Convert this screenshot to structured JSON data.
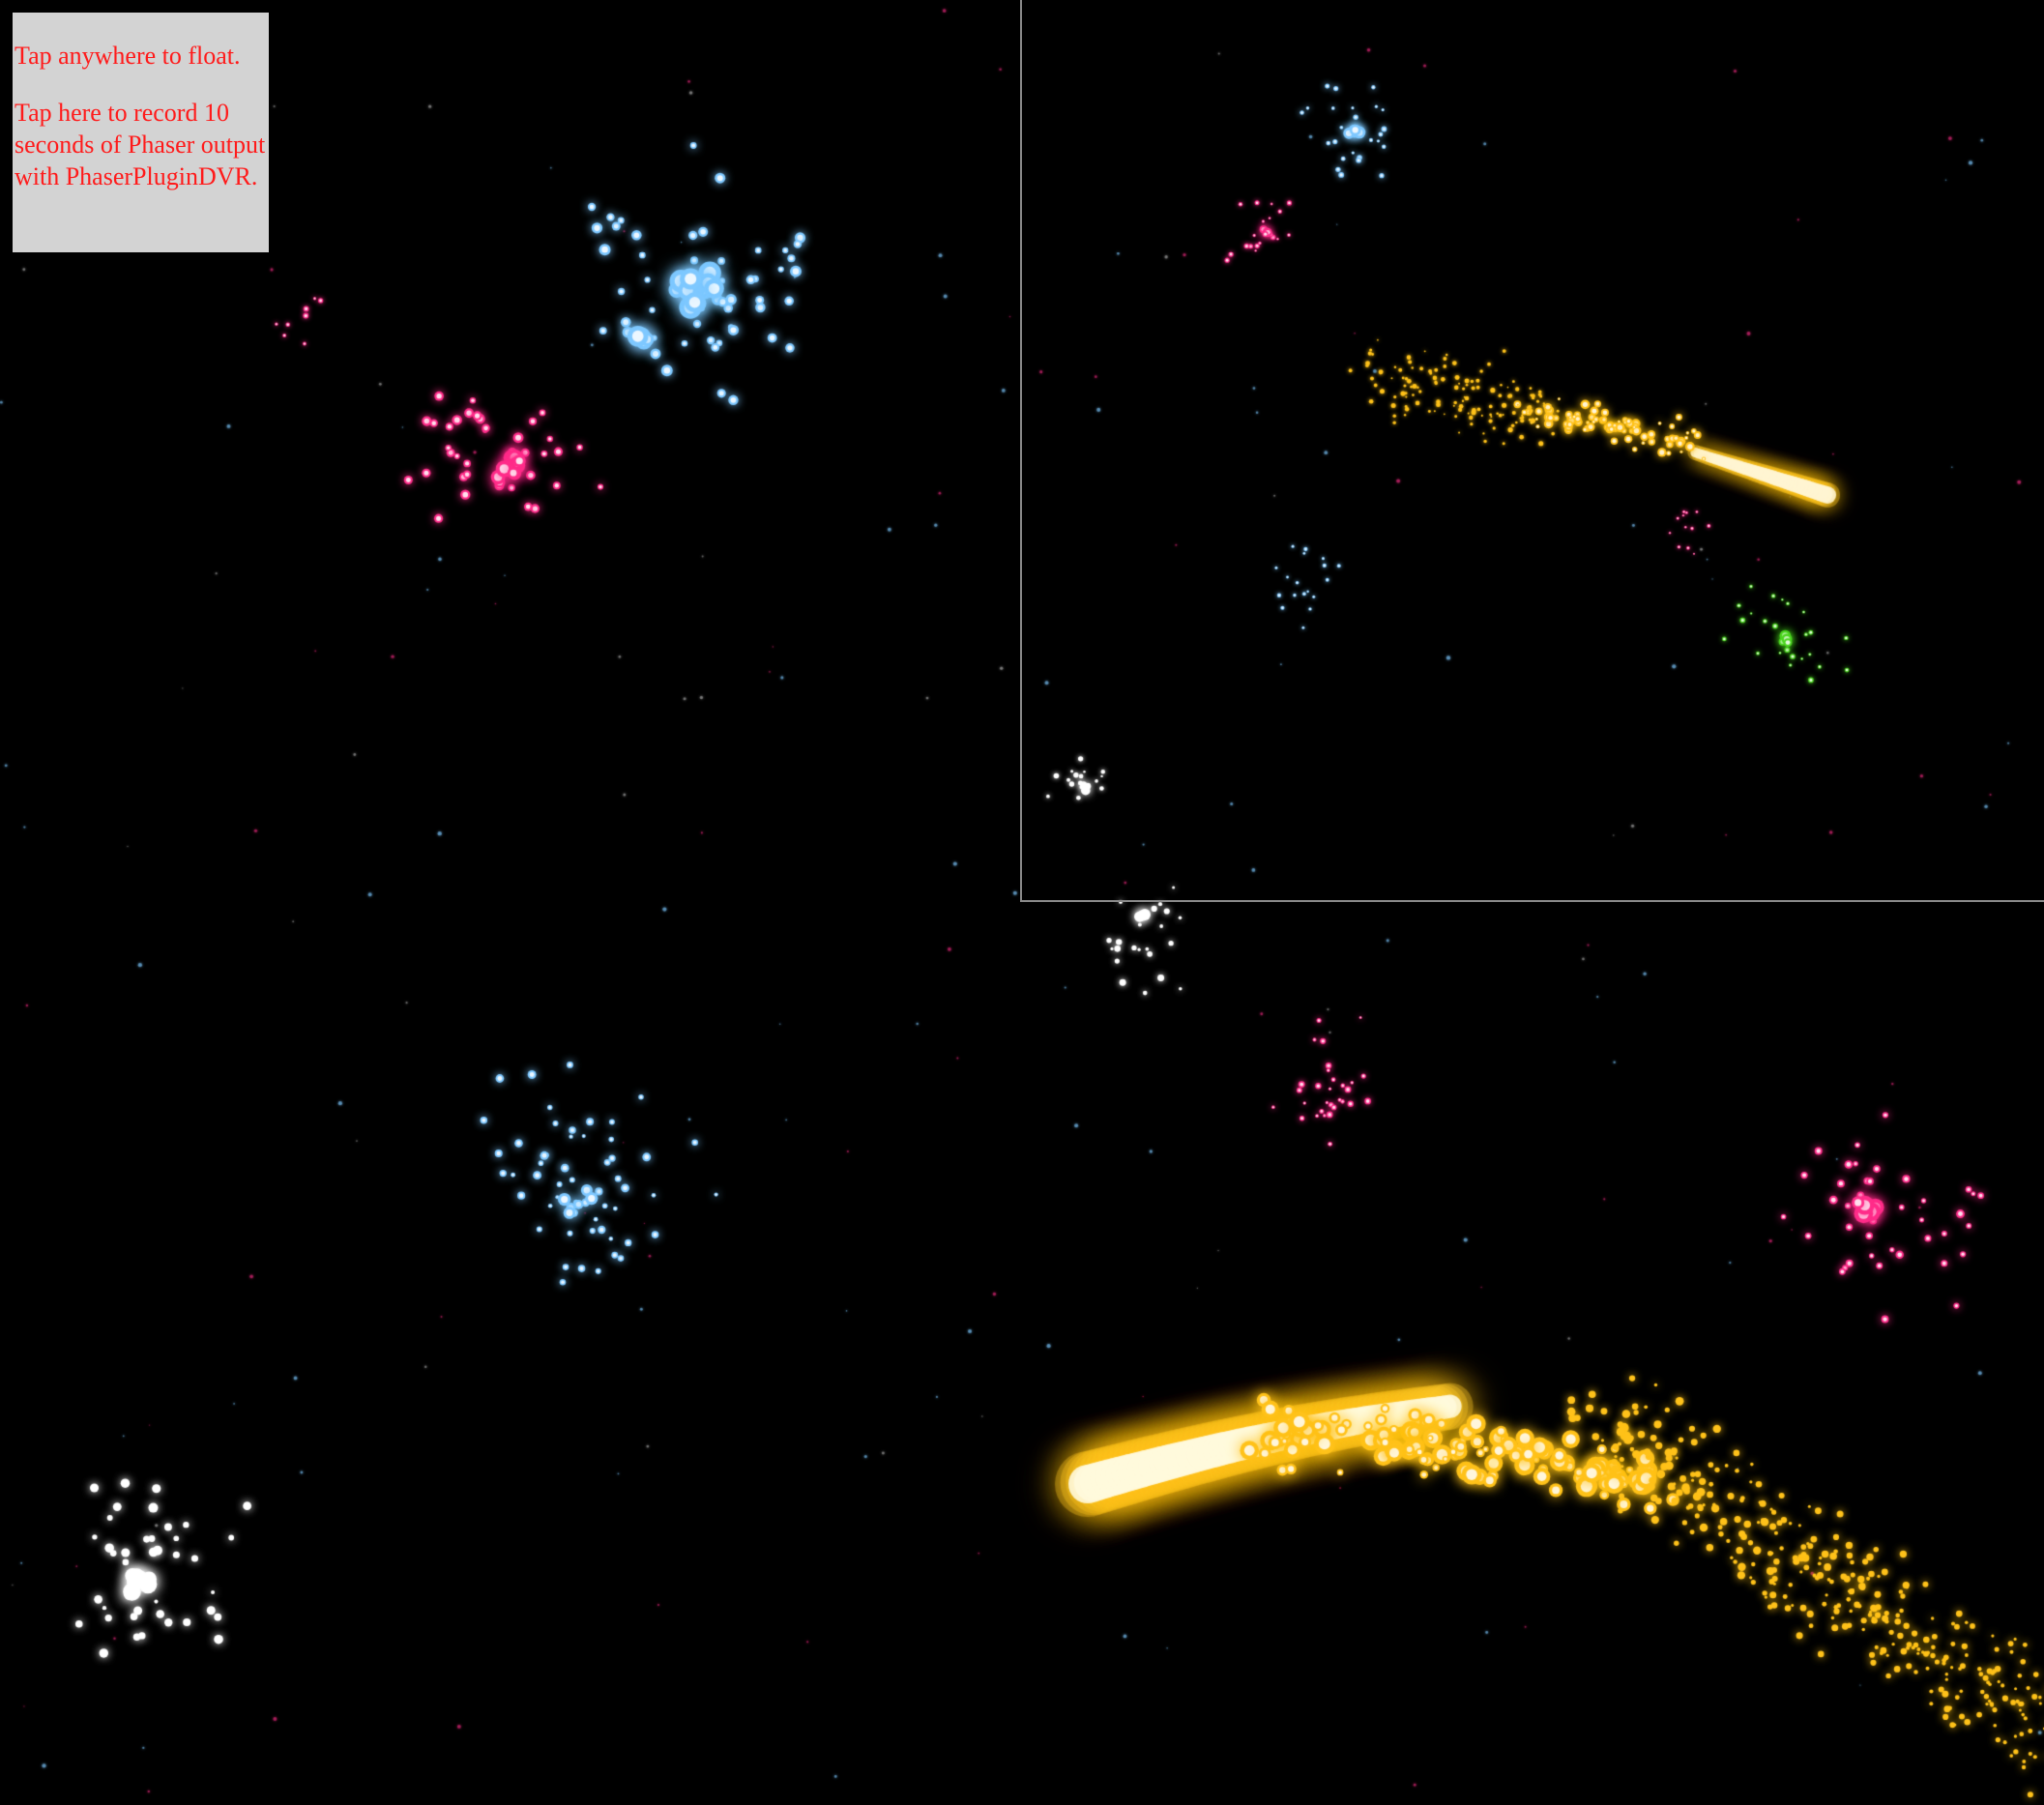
{
  "overlay": {
    "float_hint": "Tap anywhere to float.",
    "record_link": "Tap here to record 10 seconds of Phaser output with PhaserPluginDVR."
  },
  "colors": {
    "background": "#000000",
    "panel": "#d3d3d3",
    "panel_text": "#ff1a1a",
    "minimap_border": "#8a8a8a",
    "particles": {
      "blue": "#7ec8ff",
      "pink": "#ff2d8a",
      "white": "#ffffff",
      "gold": "#ffc21a",
      "green": "#4cd620"
    }
  },
  "scene": {
    "particle_groups": [
      "blue-cluster",
      "pink-cluster",
      "white-cluster",
      "gold-comet-trail",
      "green-cluster"
    ],
    "minimap": "world-view-inset"
  }
}
